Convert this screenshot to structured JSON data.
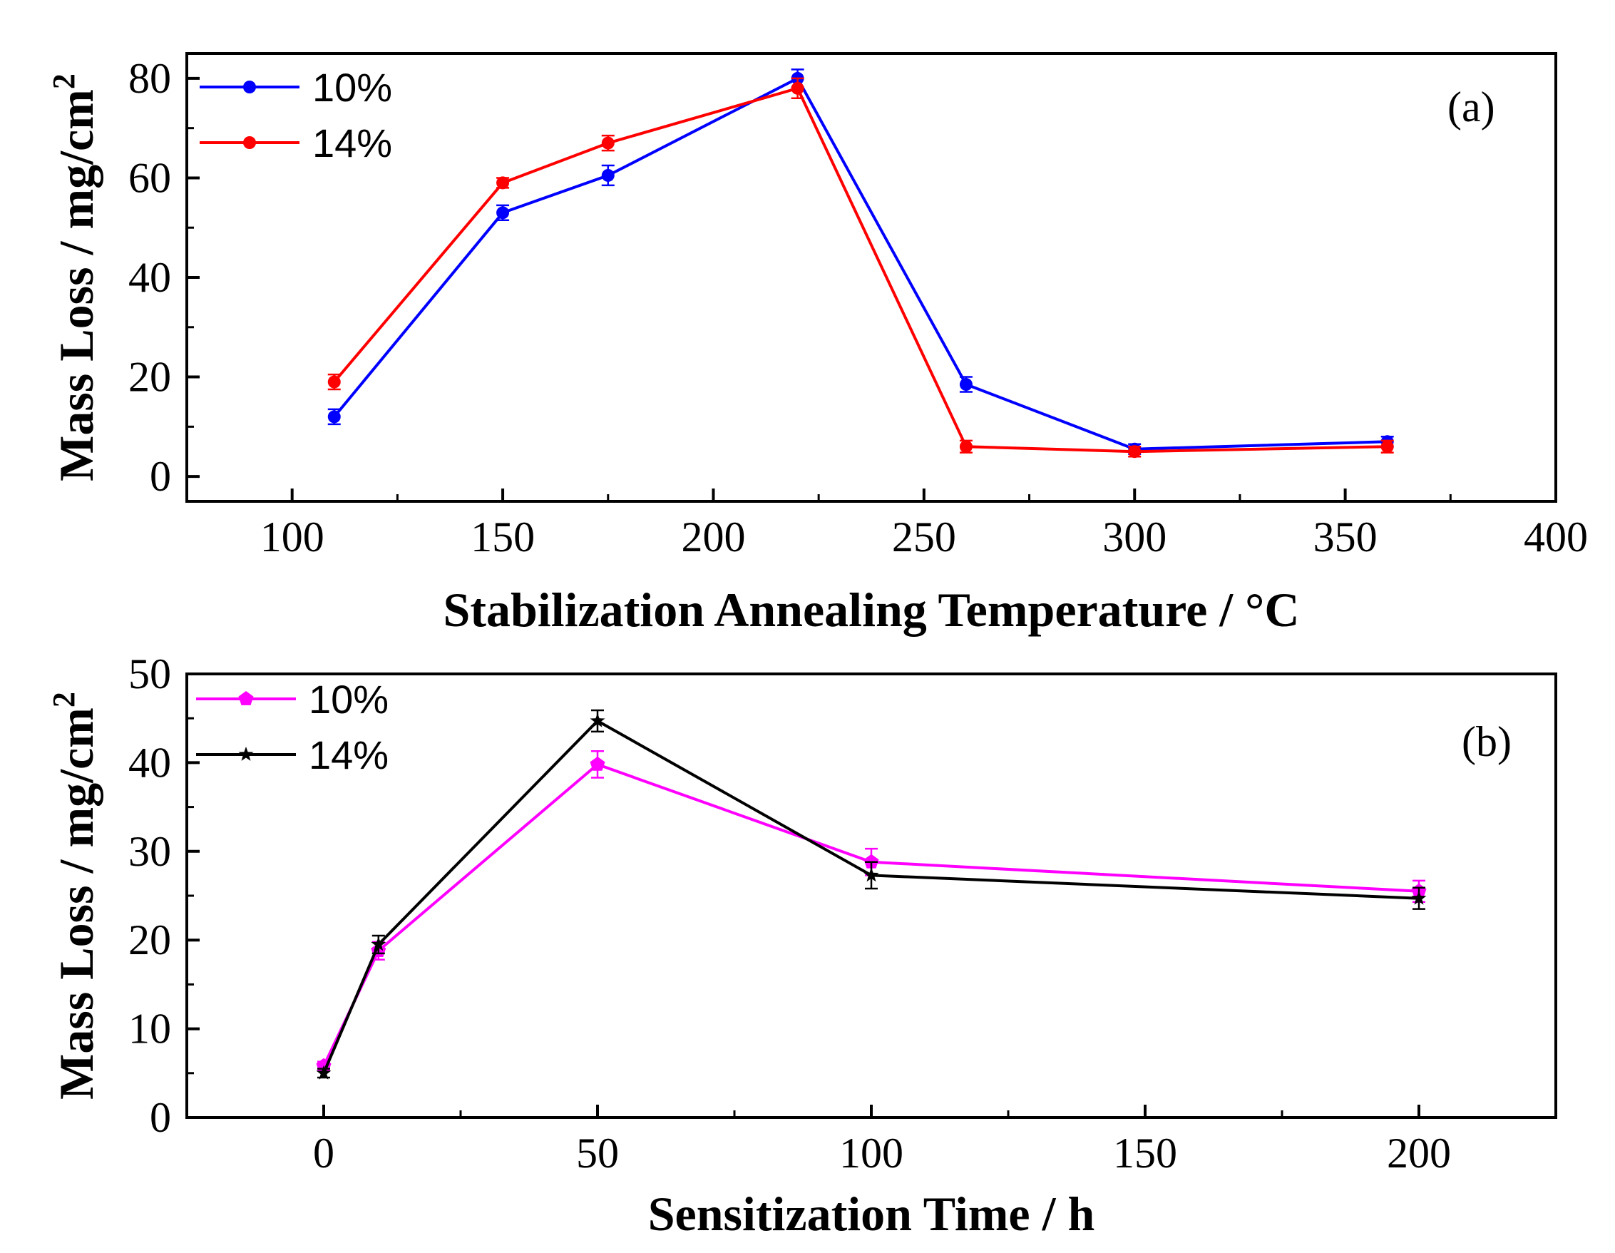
{
  "chart_data": [
    {
      "type": "line",
      "panel_label": "(a)",
      "xlabel": "Stabilization Annealing Temperature / °C",
      "ylabel": "Mass Loss / mg/cm",
      "ylabel_sup": "2",
      "xlim": [
        75,
        400
      ],
      "ylim": [
        -5,
        85
      ],
      "xticks": [
        100,
        150,
        200,
        250,
        300,
        350,
        400
      ],
      "yticks": [
        0,
        20,
        40,
        60,
        80
      ],
      "legend_position": "top-left",
      "series": [
        {
          "name": "10%",
          "color": "#0000ff",
          "marker": "circle",
          "x": [
            110,
            150,
            175,
            220,
            260,
            300,
            360
          ],
          "y": [
            12,
            53,
            60.5,
            80,
            18.5,
            5.5,
            7
          ],
          "err": [
            1.5,
            1.5,
            2,
            1.8,
            1.5,
            1,
            1
          ]
        },
        {
          "name": "14%",
          "color": "#ff0000",
          "marker": "circle",
          "x": [
            110,
            150,
            175,
            220,
            260,
            300,
            360
          ],
          "y": [
            19,
            59,
            67,
            78,
            6,
            5,
            6
          ],
          "err": [
            1.5,
            1,
            1.5,
            2,
            1.2,
            1,
            1.2
          ]
        }
      ]
    },
    {
      "type": "line",
      "panel_label": "(b)",
      "xlabel": "Sensitization Time / h",
      "ylabel": "Mass Loss / mg/cm",
      "ylabel_sup": "2",
      "xlim": [
        -25,
        225
      ],
      "ylim": [
        0,
        50
      ],
      "xticks": [
        0,
        50,
        100,
        150,
        200
      ],
      "yticks": [
        0,
        10,
        20,
        30,
        40,
        50
      ],
      "legend_position": "top-left",
      "series": [
        {
          "name": "10%",
          "color": "#ff00ff",
          "marker": "pentagon",
          "x": [
            0,
            10,
            50,
            100,
            200
          ],
          "y": [
            5.8,
            18.8,
            39.8,
            28.8,
            25.5
          ],
          "err": [
            0.5,
            1.0,
            1.5,
            1.5,
            1.2
          ]
        },
        {
          "name": "14%",
          "color": "#000000",
          "marker": "star",
          "x": [
            0,
            10,
            50,
            100,
            200
          ],
          "y": [
            5.0,
            19.5,
            44.7,
            27.3,
            24.7
          ],
          "err": [
            0.5,
            1.0,
            1.2,
            1.5,
            1.2
          ]
        }
      ]
    }
  ]
}
